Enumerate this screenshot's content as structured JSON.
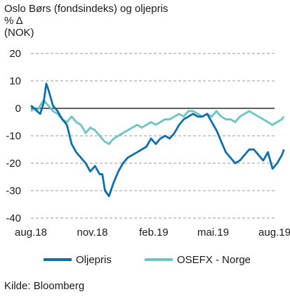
{
  "chart_data": {
    "type": "line",
    "title": "Oslo Børs (fondsindeks) og oljepris",
    "unit_line1": "% Δ",
    "unit_line2": "(NOK)",
    "ylim": [
      -40,
      20
    ],
    "y_ticks": [
      "20",
      "10",
      "0",
      "-10",
      "-20",
      "-30",
      "-40"
    ],
    "y_tick_values": [
      20,
      10,
      0,
      -10,
      -20,
      -30,
      -40
    ],
    "x_tick_labels": [
      "aug.18",
      "nov.18",
      "feb.19",
      "mai.19",
      "aug.19"
    ],
    "x_tick_dates": [
      "2018-08-01",
      "2018-11-01",
      "2019-02-01",
      "2019-05-01",
      "2019-08-01"
    ],
    "grid": true,
    "legend_position": "bottom",
    "series": [
      {
        "name": "Oljepris",
        "color": "#0e6fae",
        "points": [
          [
            "2018-08-01",
            1
          ],
          [
            "2018-08-06",
            0
          ],
          [
            "2018-08-10",
            -1
          ],
          [
            "2018-08-15",
            -2
          ],
          [
            "2018-08-20",
            2
          ],
          [
            "2018-08-24",
            9
          ],
          [
            "2018-08-27",
            7
          ],
          [
            "2018-09-03",
            1
          ],
          [
            "2018-09-10",
            -1
          ],
          [
            "2018-09-17",
            -4
          ],
          [
            "2018-09-24",
            -6
          ],
          [
            "2018-10-01",
            -13
          ],
          [
            "2018-10-08",
            -16
          ],
          [
            "2018-10-15",
            -18
          ],
          [
            "2018-10-22",
            -20
          ],
          [
            "2018-10-29",
            -23
          ],
          [
            "2018-11-05",
            -21
          ],
          [
            "2018-11-12",
            -24
          ],
          [
            "2018-11-16",
            -24
          ],
          [
            "2018-11-20",
            -30
          ],
          [
            "2018-11-26",
            -32
          ],
          [
            "2018-12-03",
            -27
          ],
          [
            "2018-12-10",
            -23
          ],
          [
            "2018-12-17",
            -20
          ],
          [
            "2018-12-24",
            -18
          ],
          [
            "2018-12-31",
            -17
          ],
          [
            "2019-01-07",
            -16
          ],
          [
            "2019-01-14",
            -15
          ],
          [
            "2019-01-21",
            -14
          ],
          [
            "2019-01-28",
            -11
          ],
          [
            "2019-02-04",
            -13
          ],
          [
            "2019-02-11",
            -11
          ],
          [
            "2019-02-18",
            -10
          ],
          [
            "2019-02-25",
            -11
          ],
          [
            "2019-03-04",
            -9
          ],
          [
            "2019-03-11",
            -6
          ],
          [
            "2019-03-18",
            -4
          ],
          [
            "2019-03-25",
            -3
          ],
          [
            "2019-04-01",
            -2
          ],
          [
            "2019-04-08",
            -3
          ],
          [
            "2019-04-15",
            -3
          ],
          [
            "2019-04-22",
            -2
          ],
          [
            "2019-04-29",
            -5
          ],
          [
            "2019-05-06",
            -8
          ],
          [
            "2019-05-13",
            -12
          ],
          [
            "2019-05-20",
            -16
          ],
          [
            "2019-05-27",
            -18
          ],
          [
            "2019-06-03",
            -20
          ],
          [
            "2019-06-10",
            -19
          ],
          [
            "2019-06-17",
            -17
          ],
          [
            "2019-06-24",
            -15
          ],
          [
            "2019-07-01",
            -15
          ],
          [
            "2019-07-08",
            -17
          ],
          [
            "2019-07-15",
            -19
          ],
          [
            "2019-07-22",
            -16
          ],
          [
            "2019-07-29",
            -22
          ],
          [
            "2019-08-05",
            -20
          ],
          [
            "2019-08-12",
            -17
          ],
          [
            "2019-08-15",
            -15
          ]
        ]
      },
      {
        "name": "OSEFX - Norge",
        "color": "#6cc4c3",
        "points": [
          [
            "2018-08-01",
            -1
          ],
          [
            "2018-08-06",
            0
          ],
          [
            "2018-08-10",
            -1
          ],
          [
            "2018-08-15",
            1
          ],
          [
            "2018-08-20",
            3
          ],
          [
            "2018-08-27",
            1
          ],
          [
            "2018-09-03",
            -1
          ],
          [
            "2018-09-10",
            -2
          ],
          [
            "2018-09-17",
            -4
          ],
          [
            "2018-09-24",
            -5
          ],
          [
            "2018-10-01",
            -3
          ],
          [
            "2018-10-08",
            -5
          ],
          [
            "2018-10-15",
            -6
          ],
          [
            "2018-10-22",
            -9
          ],
          [
            "2018-10-29",
            -7
          ],
          [
            "2018-11-05",
            -8
          ],
          [
            "2018-11-12",
            -10
          ],
          [
            "2018-11-19",
            -12
          ],
          [
            "2018-11-26",
            -13
          ],
          [
            "2018-12-03",
            -11
          ],
          [
            "2018-12-10",
            -10
          ],
          [
            "2018-12-17",
            -9
          ],
          [
            "2018-12-24",
            -8
          ],
          [
            "2018-12-31",
            -7
          ],
          [
            "2019-01-07",
            -6
          ],
          [
            "2019-01-14",
            -7
          ],
          [
            "2019-01-21",
            -6
          ],
          [
            "2019-01-28",
            -5
          ],
          [
            "2019-02-04",
            -6
          ],
          [
            "2019-02-11",
            -5
          ],
          [
            "2019-02-18",
            -4
          ],
          [
            "2019-02-25",
            -4
          ],
          [
            "2019-03-04",
            -3
          ],
          [
            "2019-03-11",
            -2
          ],
          [
            "2019-03-18",
            -3
          ],
          [
            "2019-03-25",
            -1
          ],
          [
            "2019-04-01",
            -1
          ],
          [
            "2019-04-08",
            -2
          ],
          [
            "2019-04-15",
            -3
          ],
          [
            "2019-04-22",
            -2
          ],
          [
            "2019-04-29",
            -3
          ],
          [
            "2019-05-06",
            -1
          ],
          [
            "2019-05-13",
            -3
          ],
          [
            "2019-05-20",
            -4
          ],
          [
            "2019-05-27",
            -4
          ],
          [
            "2019-06-03",
            -5
          ],
          [
            "2019-06-10",
            -3
          ],
          [
            "2019-06-17",
            -2
          ],
          [
            "2019-06-24",
            -1
          ],
          [
            "2019-07-01",
            -2
          ],
          [
            "2019-07-08",
            -3
          ],
          [
            "2019-07-15",
            -4
          ],
          [
            "2019-07-22",
            -5
          ],
          [
            "2019-07-29",
            -6
          ],
          [
            "2019-08-05",
            -5
          ],
          [
            "2019-08-12",
            -4
          ],
          [
            "2019-08-15",
            -3
          ]
        ]
      }
    ],
    "source": "Kilde: Bloomberg"
  }
}
